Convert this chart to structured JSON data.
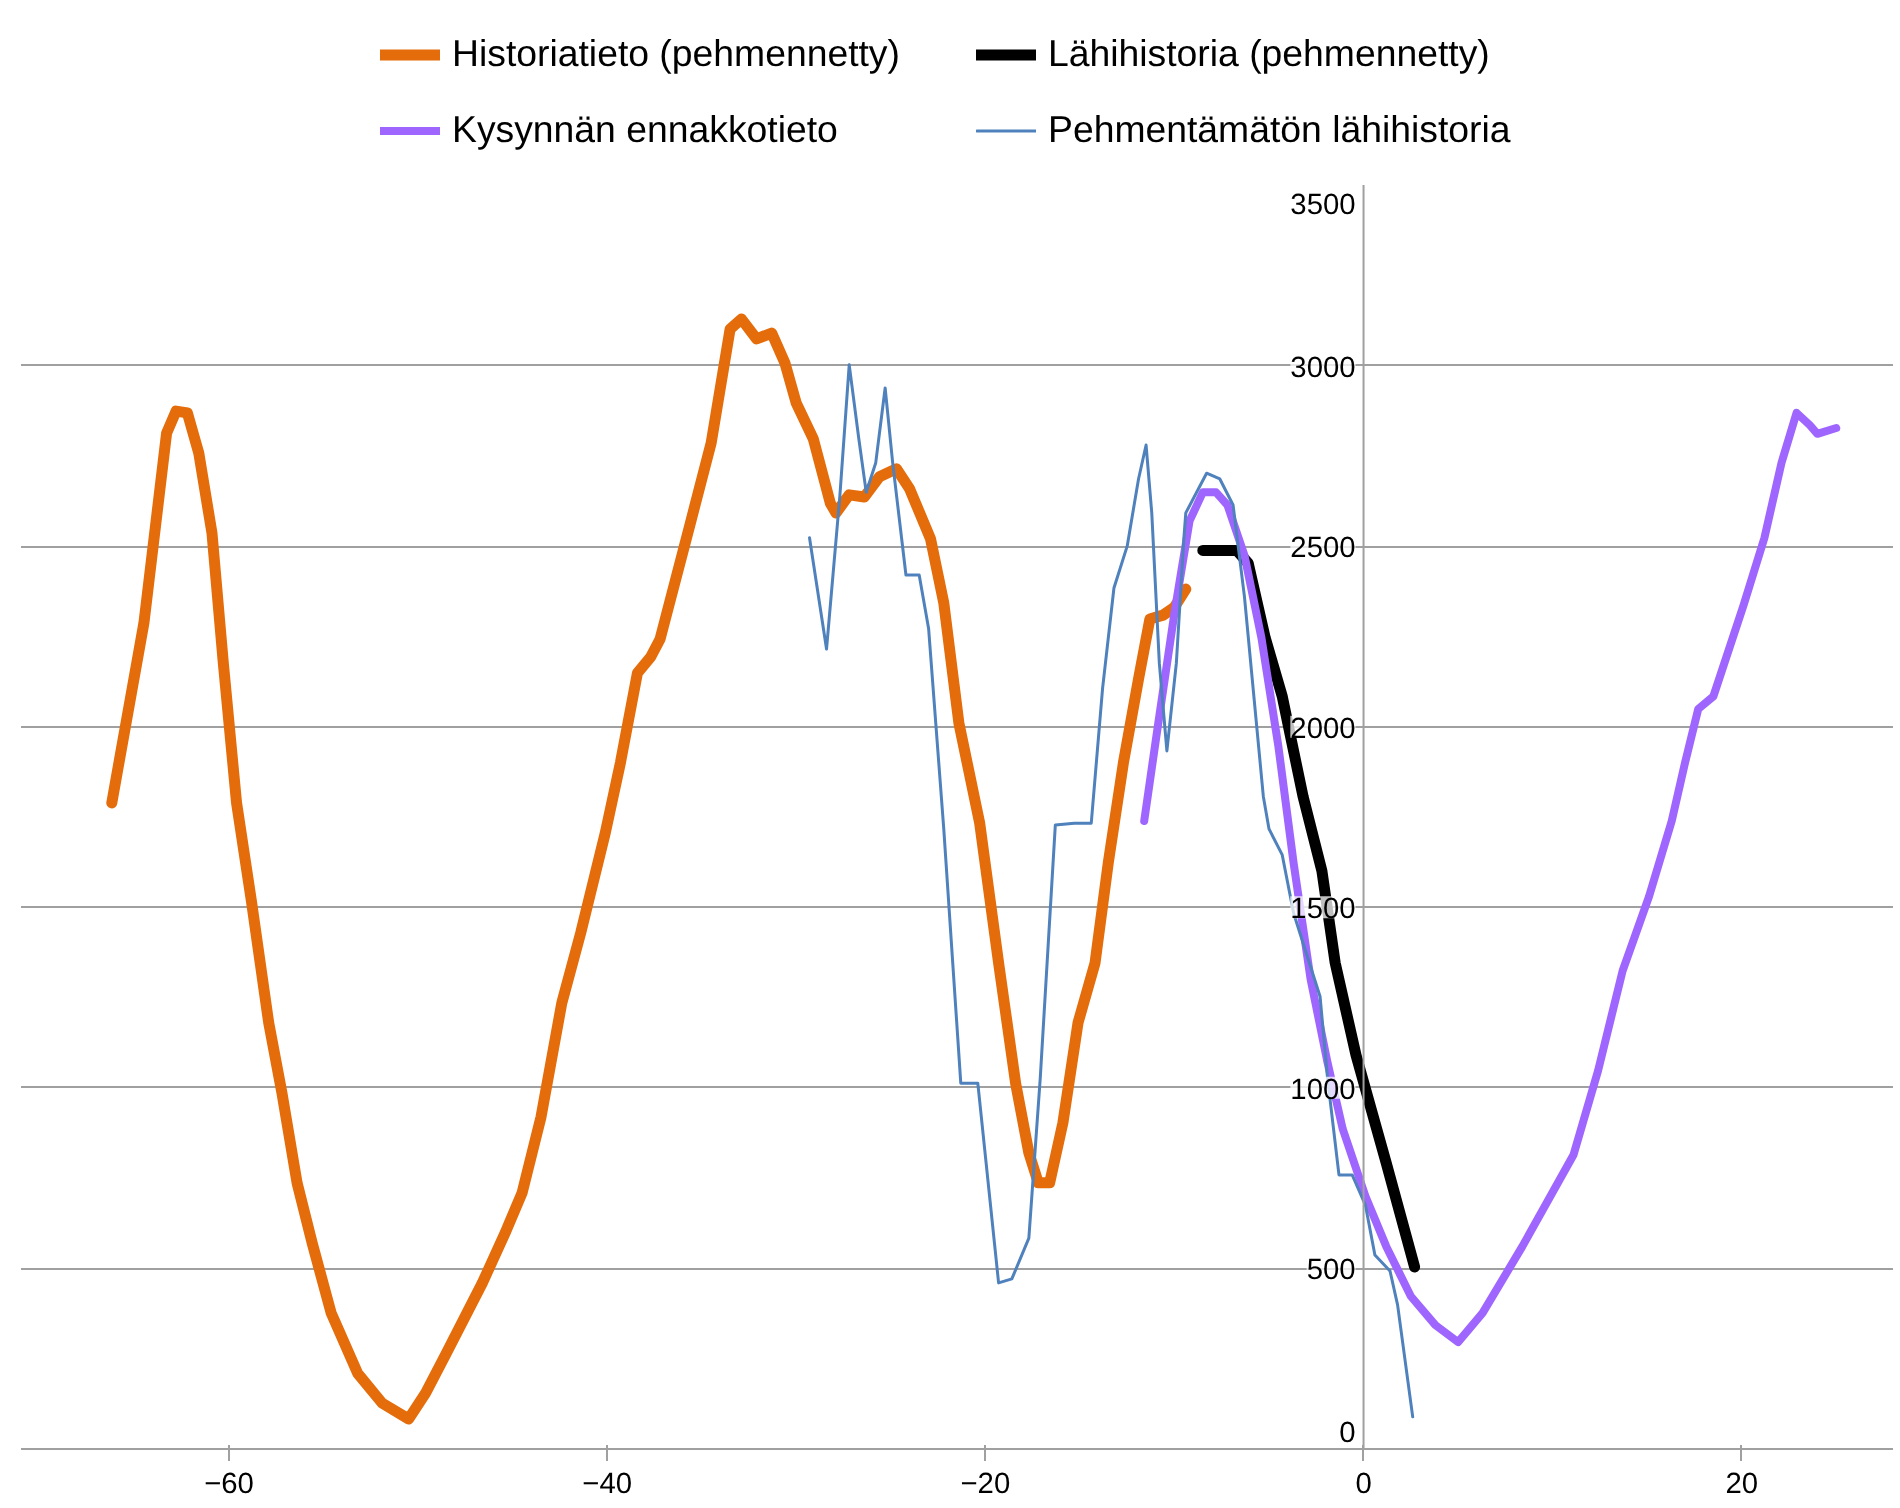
{
  "chart_data": {
    "type": "line",
    "xlim": [
      -71,
      28
    ],
    "ylim": [
      0,
      3500
    ],
    "xticks": [
      -60,
      -40,
      -20,
      0,
      20
    ],
    "yticks": [
      0,
      500,
      1000,
      1500,
      2000,
      2500,
      3000,
      3500
    ],
    "grid": "y",
    "legend": "top",
    "marker": "none",
    "line_style": "solid",
    "series": [
      {
        "name": "Historiatieto (pehmennetty)",
        "color": "#e46c0a",
        "x": [
          -66.2,
          -64.5,
          -63.3,
          -62.8,
          -62.2,
          -61.6,
          -60.9,
          -60.3,
          -59.6,
          -58.8,
          -57.9,
          -57.2,
          -56.4,
          -55.6,
          -54.6,
          -53.2,
          -51.9,
          -50.5,
          -49.6,
          -48.5,
          -46.6,
          -45.4,
          -44.5,
          -43.5,
          -42.4,
          -41.4,
          -40.1,
          -39.3,
          -38.4,
          -37.7,
          -37.2,
          -35.6,
          -34.5,
          -33.5,
          -32.9,
          -32.1,
          -31.3,
          -30.6,
          -30.0,
          -29.1,
          -28.2,
          -27.9,
          -27.2,
          -26.4,
          -25.6,
          -24.7,
          -24.0,
          -22.9,
          -22.2,
          -21.4,
          -20.3,
          -19.3,
          -18.4,
          -17.7,
          -17.2,
          -16.6,
          -15.9,
          -15.1,
          -14.2,
          -13.5,
          -12.7,
          -11.9,
          -11.3,
          -10.6,
          -10.0,
          -9.4
        ],
        "values": [
          1789,
          2287,
          2813,
          2874,
          2869,
          2758,
          2536,
          2176,
          1789,
          1512,
          1180,
          986,
          737,
          570,
          377,
          210,
          127,
          83,
          155,
          266,
          460,
          598,
          709,
          919,
          1235,
          1429,
          1706,
          1900,
          2149,
          2193,
          2243,
          2564,
          2786,
          3101,
          3129,
          3074,
          3090,
          3007,
          2896,
          2797,
          2619,
          2592,
          2642,
          2636,
          2692,
          2714,
          2658,
          2520,
          2343,
          2010,
          1733,
          1346,
          1013,
          820,
          737,
          737,
          903,
          1180,
          1346,
          1623,
          1900,
          2132,
          2298,
          2309,
          2331,
          2381
        ]
      },
      {
        "name": "Lähihistoria (pehmennetty)",
        "color": "#000000",
        "x": [
          -8.5,
          -6.7,
          -6.1,
          -5.2,
          -4.3,
          -3.2,
          -2.2,
          -1.5,
          -0.4,
          1.2,
          2.7
        ],
        "values": [
          2488,
          2488,
          2453,
          2246,
          2084,
          1807,
          1600,
          1346,
          1091,
          792,
          504
        ]
      },
      {
        "name": "Kysynnän ennakkotieto",
        "color": "#9f66ff",
        "x": [
          -11.6,
          -10.9,
          -10.0,
          -9.2,
          -8.5,
          -7.8,
          -7.2,
          -6.3,
          -5.4,
          -4.5,
          -3.7,
          -2.8,
          -1.9,
          -1.1,
          0.1,
          1.2,
          2.5,
          3.8,
          5.0,
          6.3,
          8.4,
          11.1,
          12.4,
          13.7,
          15.1,
          16.3,
          17.0,
          17.7,
          18.5,
          20.1,
          21.2,
          22.1,
          22.9,
          23.6,
          24.0,
          25.0
        ],
        "values": [
          1739,
          1994,
          2315,
          2570,
          2649,
          2649,
          2614,
          2475,
          2246,
          1944,
          1623,
          1301,
          1069,
          886,
          700,
          561,
          423,
          343,
          296,
          377,
          561,
          814,
          1047,
          1324,
          1530,
          1739,
          1900,
          2049,
          2084,
          2337,
          2523,
          2730,
          2869,
          2835,
          2811,
          2827
        ]
      },
      {
        "name": "Pehmentämätön lähihistoria",
        "color": "#4f81bd",
        "x": [
          -29.3,
          -28.4,
          -27.7,
          -27.2,
          -26.7,
          -26.3,
          -25.8,
          -25.3,
          -24.9,
          -24.2,
          -23.5,
          -23.0,
          -22.2,
          -21.3,
          -20.4,
          -19.3,
          -18.6,
          -17.7,
          -17.1,
          -16.3,
          -15.3,
          -14.4,
          -13.8,
          -13.2,
          -12.5,
          -11.9,
          -11.5,
          -11.2,
          -10.8,
          -10.4,
          -9.9,
          -9.5,
          -9.4,
          -8.3,
          -7.6,
          -6.9,
          -6.3,
          -5.8,
          -5.3,
          -5.0,
          -4.3,
          -3.7,
          -3.0,
          -2.3,
          -1.9,
          -1.3,
          -0.6,
          0.1,
          0.6,
          1.4,
          1.8,
          2.6
        ],
        "values": [
          2523,
          2215,
          2636,
          3002,
          2800,
          2649,
          2730,
          2938,
          2730,
          2420,
          2420,
          2271,
          1717,
          1013,
          1013,
          460,
          471,
          584,
          1025,
          1728,
          1733,
          1733,
          2107,
          2384,
          2500,
          2686,
          2780,
          2592,
          2176,
          1933,
          2176,
          2523,
          2592,
          2702,
          2686,
          2614,
          2361,
          2084,
          1807,
          1717,
          1645,
          1484,
          1368,
          1253,
          1025,
          759,
          759,
          675,
          537,
          493,
          399,
          89
        ]
      }
    ]
  }
}
